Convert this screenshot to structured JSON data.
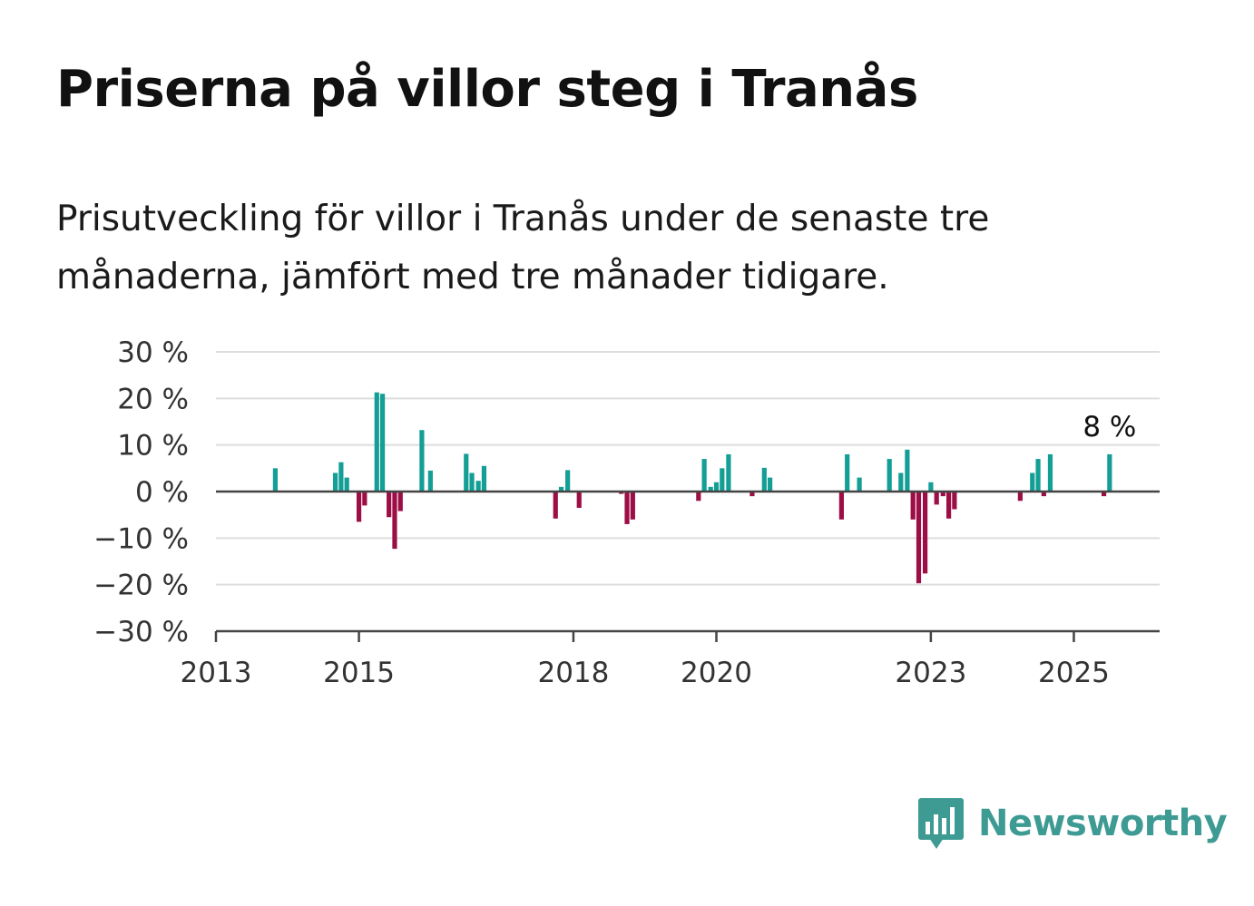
{
  "title": "Priserna på villor steg i Tranås",
  "subtitle": "Prisutveckling för villor i Tranås under de senaste tre månaderna, jämfört med tre månader tidigare.",
  "brand": {
    "name": "Newsworthy",
    "color": "#3d9b93",
    "icon": "newsworthy-logo-icon"
  },
  "chart_data": {
    "type": "bar",
    "xlim": [
      2013.0,
      2026.2
    ],
    "ylim": [
      -30,
      30
    ],
    "y_ticks": [
      30,
      20,
      10,
      0,
      -10,
      -20,
      -30
    ],
    "y_tick_labels": [
      "30 %",
      "20 %",
      "10 %",
      "0 %",
      "−10 %",
      "−20 %",
      "−30 %"
    ],
    "x_ticks": [
      2013,
      2015,
      2018,
      2020,
      2023,
      2025
    ],
    "x_tick_labels": [
      "2013",
      "2015",
      "2018",
      "2020",
      "2023",
      "2025"
    ],
    "grid": true,
    "colors": {
      "positive": "#139e96",
      "negative": "#9c0e45",
      "grid": "#dddddd",
      "axis": "#444444"
    },
    "x": [
      2013.83,
      2014.67,
      2014.75,
      2014.83,
      2015.0,
      2015.08,
      2015.25,
      2015.33,
      2015.42,
      2015.5,
      2015.58,
      2015.88,
      2016.0,
      2016.5,
      2016.58,
      2016.67,
      2016.75,
      2017.75,
      2017.83,
      2017.92,
      2018.08,
      2018.67,
      2018.75,
      2018.83,
      2019.75,
      2019.83,
      2019.92,
      2020.0,
      2020.08,
      2020.17,
      2020.5,
      2020.67,
      2020.75,
      2021.75,
      2021.83,
      2022.0,
      2022.42,
      2022.58,
      2022.67,
      2022.75,
      2022.83,
      2022.92,
      2023.0,
      2023.08,
      2023.17,
      2023.25,
      2023.33,
      2024.25,
      2024.42,
      2024.5,
      2024.58,
      2024.67,
      2024.75,
      2024.83,
      2025.42,
      2025.5
    ],
    "values": [
      5,
      4,
      6.3,
      3,
      -6.5,
      -3,
      21.3,
      21,
      -5.5,
      -12.3,
      -4.2,
      13.2,
      4.5,
      8.1,
      4,
      2.3,
      5.5,
      -5.8,
      1,
      4.6,
      -3.5,
      -0.5,
      -7,
      -6,
      -2,
      7,
      1,
      2,
      5,
      8,
      -1,
      5.1,
      3,
      -6,
      8,
      3,
      7,
      4,
      9,
      -6,
      -19.7,
      -17.6,
      2,
      -2.8,
      -1,
      -5.8,
      -3.8,
      -2,
      4,
      7,
      -1,
      8,
      0,
      0,
      -1,
      8
    ],
    "value_label": "8 %",
    "value_label_index": 55
  }
}
